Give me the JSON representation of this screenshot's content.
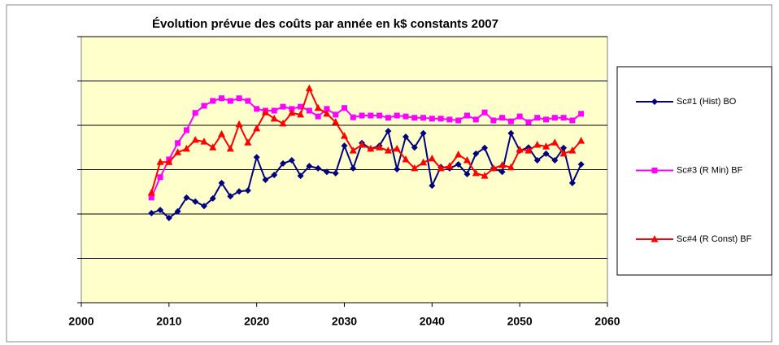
{
  "chart_data": {
    "type": "line",
    "title": "Évolution prévue des coûts par année en k$ constants 2007",
    "x": [
      2008,
      2009,
      2010,
      2011,
      2012,
      2013,
      2014,
      2015,
      2016,
      2017,
      2018,
      2019,
      2020,
      2021,
      2022,
      2023,
      2024,
      2025,
      2026,
      2027,
      2028,
      2029,
      2030,
      2031,
      2032,
      2033,
      2034,
      2035,
      2036,
      2037,
      2038,
      2039,
      2040,
      2041,
      2042,
      2043,
      2044,
      2045,
      2046,
      2047,
      2048,
      2049,
      2050,
      2051,
      2052,
      2053,
      2054,
      2055,
      2056,
      2057
    ],
    "series": [
      {
        "name": "Sc#1 (Hist) BO",
        "color": "#000080",
        "marker": "diamond",
        "values": [
          2.02,
          2.09,
          1.91,
          2.06,
          2.37,
          2.28,
          2.18,
          2.35,
          2.7,
          2.4,
          2.51,
          2.53,
          3.28,
          2.77,
          2.88,
          3.14,
          3.21,
          2.86,
          3.08,
          3.03,
          2.95,
          2.92,
          3.54,
          3.03,
          3.6,
          3.47,
          3.54,
          3.87,
          3.01,
          3.74,
          3.5,
          3.82,
          2.64,
          3.06,
          3.03,
          3.12,
          2.9,
          3.36,
          3.49,
          3.03,
          2.95,
          3.82,
          3.43,
          3.5,
          3.21,
          3.36,
          3.21,
          3.49,
          2.7,
          3.12
        ]
      },
      {
        "name": "Sc#3 (R Min) BF",
        "color": "#ff00ff",
        "marker": "square",
        "values": [
          2.37,
          2.83,
          3.23,
          3.6,
          3.89,
          4.28,
          4.44,
          4.55,
          4.61,
          4.55,
          4.61,
          4.55,
          4.37,
          4.33,
          4.33,
          4.42,
          4.37,
          4.42,
          4.33,
          4.2,
          4.37,
          4.24,
          4.39,
          4.18,
          4.22,
          4.22,
          4.22,
          4.17,
          4.22,
          4.2,
          4.17,
          4.17,
          4.15,
          4.15,
          4.13,
          4.11,
          4.22,
          4.13,
          4.29,
          4.11,
          4.17,
          4.09,
          4.2,
          4.07,
          4.17,
          4.13,
          4.17,
          4.17,
          4.11,
          4.26
        ]
      },
      {
        "name": "Sc#4 (R Const) BF",
        "color": "#ff0000",
        "marker": "triangle",
        "values": [
          2.48,
          3.17,
          3.17,
          3.39,
          3.47,
          3.67,
          3.63,
          3.5,
          3.8,
          3.47,
          4.02,
          3.61,
          3.93,
          4.29,
          4.15,
          4.04,
          4.28,
          4.24,
          4.83,
          4.39,
          4.26,
          4.07,
          3.76,
          3.43,
          3.56,
          3.47,
          3.5,
          3.43,
          3.47,
          3.23,
          3.03,
          3.16,
          3.25,
          3.03,
          3.08,
          3.34,
          3.21,
          2.92,
          2.86,
          3.03,
          3.1,
          3.05,
          3.45,
          3.43,
          3.56,
          3.52,
          3.61,
          3.36,
          3.43,
          3.65
        ]
      }
    ],
    "xlim": [
      2000,
      2060
    ],
    "xticks": [
      2000,
      2010,
      2020,
      2030,
      2040,
      2050,
      2060
    ],
    "ylim": [
      0,
      6
    ],
    "yticks": [
      0,
      1,
      2,
      3,
      4,
      5,
      6
    ],
    "grid": true,
    "legend": "right",
    "plot_background": "#ffffcc"
  }
}
